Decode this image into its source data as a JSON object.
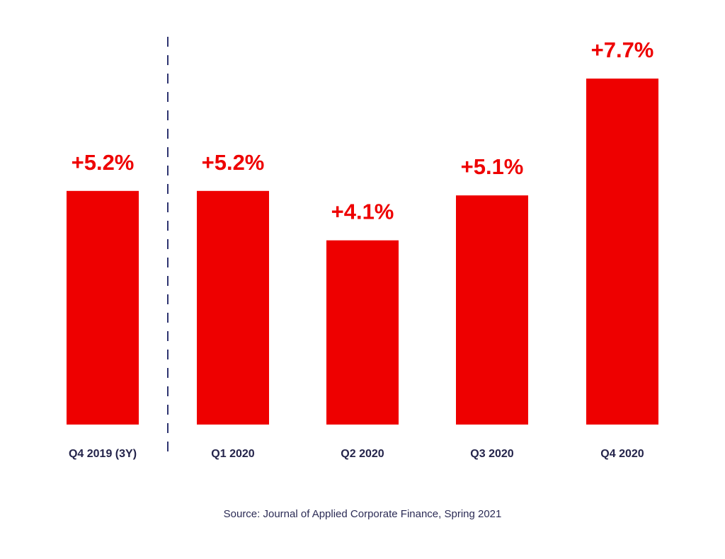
{
  "colors": {
    "bar": "#ee0000",
    "label": "#ee0000",
    "axis_text": "#23234a",
    "divider": "#2e3470"
  },
  "chart_data": {
    "type": "bar",
    "title": "",
    "xlabel": "",
    "ylabel": "",
    "categories": [
      "Q4 2019 (3Y)",
      "Q1 2020",
      "Q2 2020",
      "Q3 2020",
      "Q4 2020"
    ],
    "values": [
      5.2,
      5.2,
      4.1,
      5.1,
      7.7
    ],
    "value_labels": [
      "+5.2%",
      "+5.2%",
      "+4.1%",
      "+5.1%",
      "+7.7%"
    ],
    "ylim": [
      0,
      8
    ],
    "grid": false,
    "divider_after_category": 0
  },
  "footer": {
    "source": "Source: Journal of Applied Corporate Finance, Spring 2021"
  }
}
